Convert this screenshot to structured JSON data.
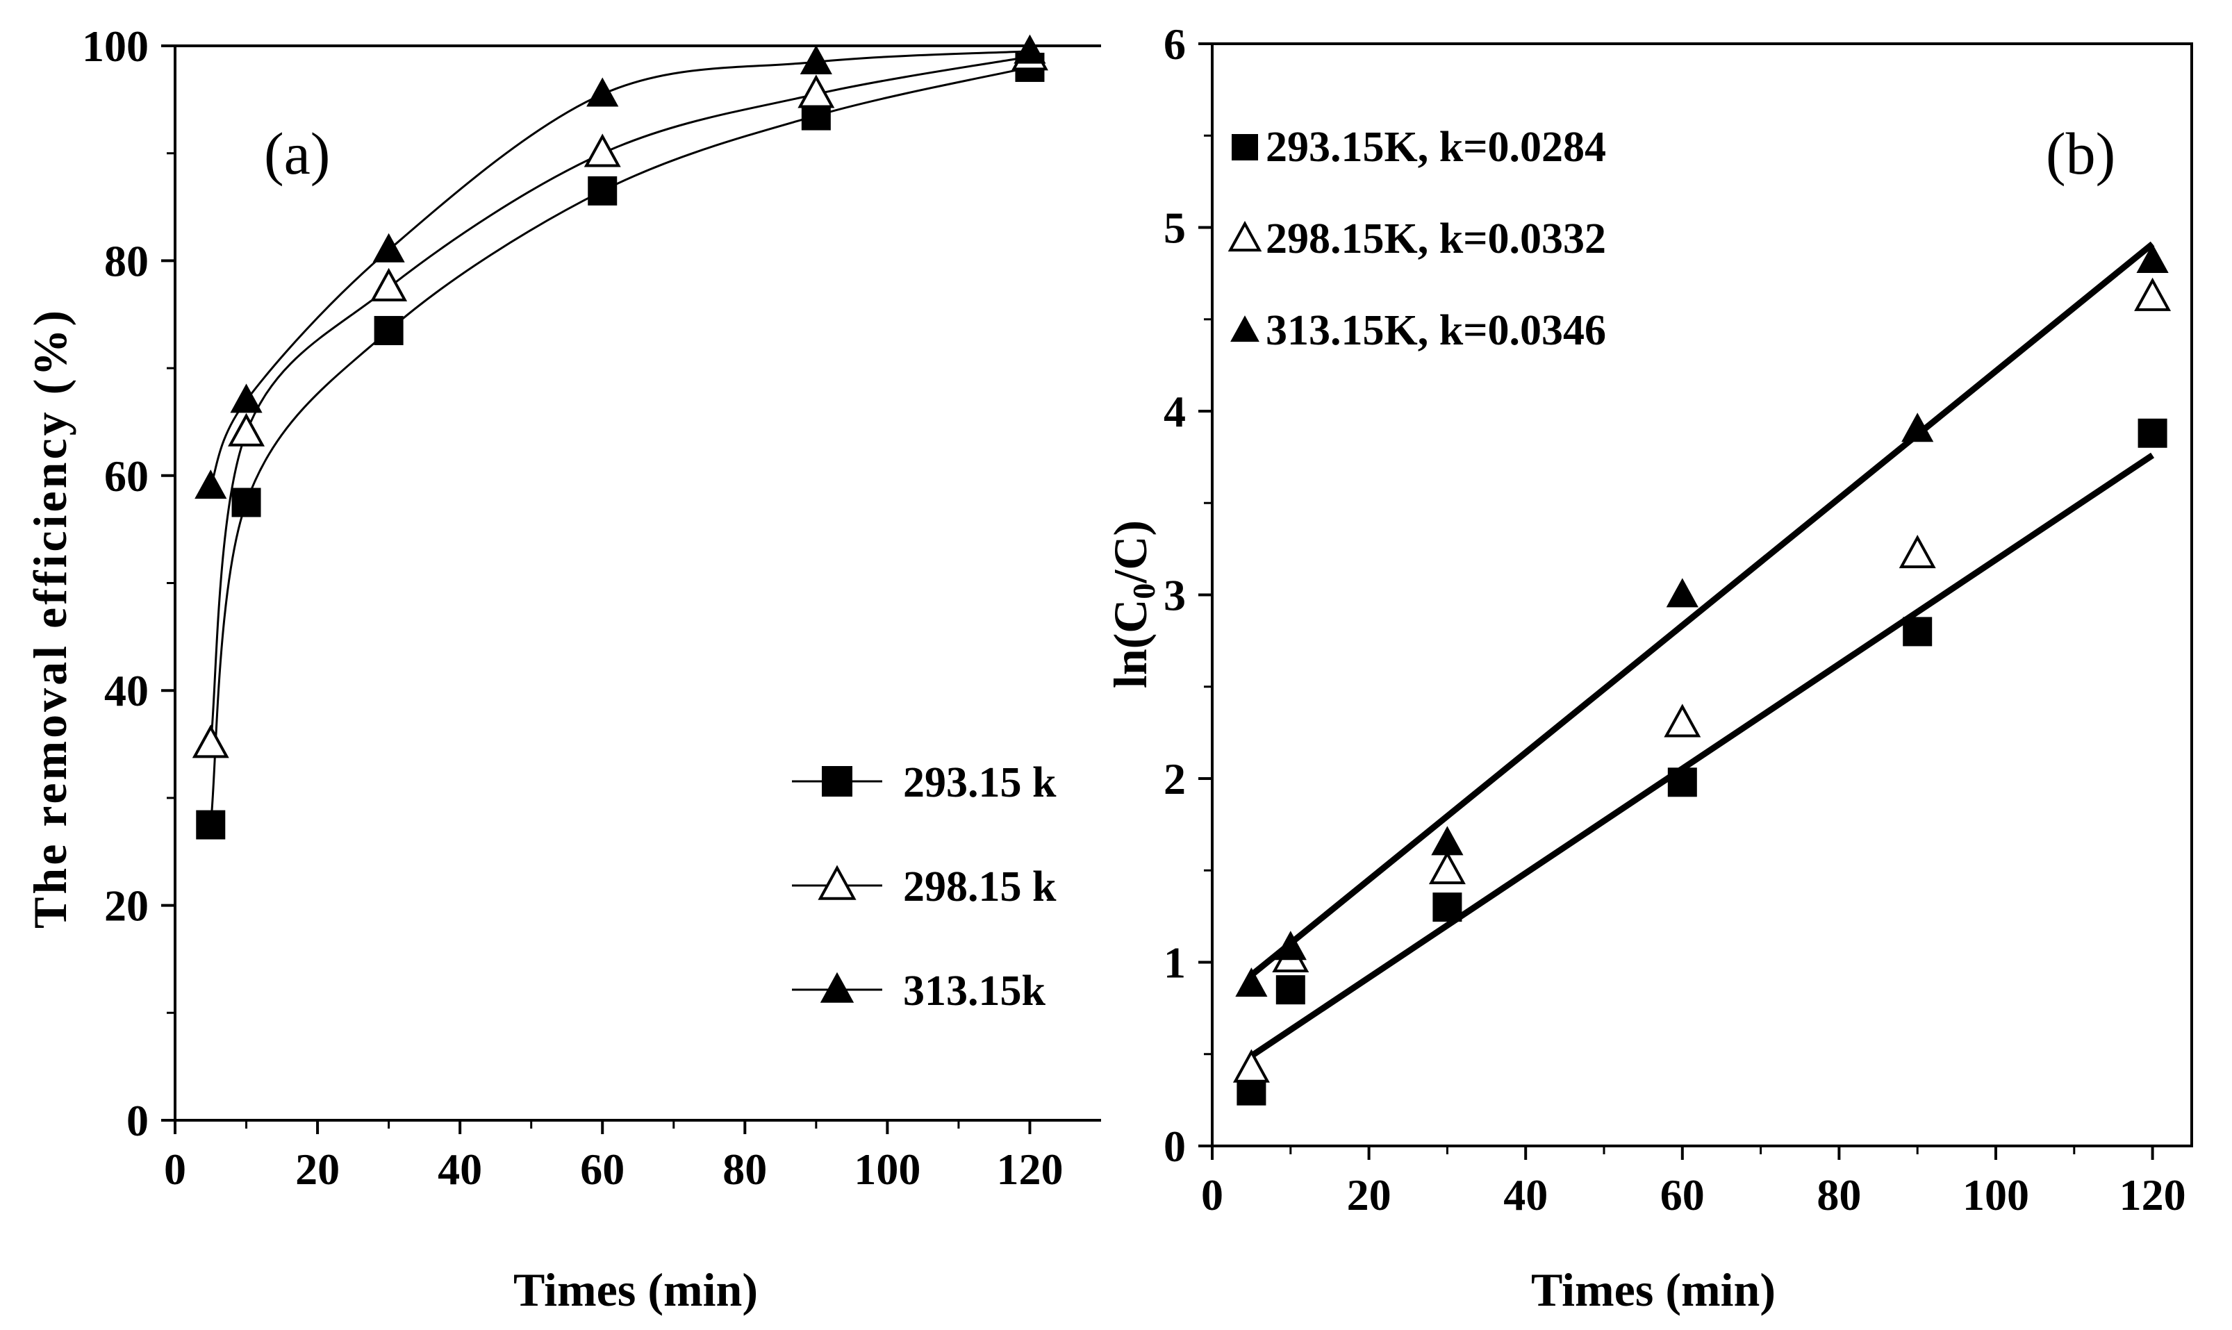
{
  "chart_data": [
    {
      "panel": "(a)",
      "type": "line",
      "xlabel": "Times (min)",
      "ylabel": "The removal efficiency (%)",
      "xlim": [
        0,
        130
      ],
      "ylim": [
        0,
        100
      ],
      "xticks": [
        0,
        20,
        40,
        60,
        80,
        100,
        120
      ],
      "yticks": [
        0,
        20,
        40,
        60,
        80,
        100
      ],
      "legend_position": "bottom-right",
      "x": [
        5,
        10,
        30,
        60,
        90,
        120
      ],
      "series": [
        {
          "name": "293.15 k",
          "marker": "square-filled",
          "values": [
            27.5,
            57.5,
            73.5,
            86.5,
            93.5,
            98.0
          ]
        },
        {
          "name": "298.15 k",
          "marker": "triangle-open",
          "values": [
            35.0,
            64.0,
            77.5,
            90.0,
            95.5,
            99.0
          ]
        },
        {
          "name": "313.15k",
          "marker": "triangle-filled",
          "values": [
            59.0,
            67.0,
            81.0,
            95.5,
            98.5,
            99.5
          ]
        }
      ]
    },
    {
      "panel": "(b)",
      "type": "scatter",
      "xlabel": "Times (min)",
      "ylabel": "ln(C0/C)",
      "ylabel_main": "ln(C",
      "ylabel_sub": "0",
      "ylabel_end": "/C)",
      "xlim": [
        0,
        125
      ],
      "ylim": [
        0,
        6
      ],
      "xticks": [
        0,
        20,
        40,
        60,
        80,
        100,
        120
      ],
      "yticks": [
        0,
        1,
        2,
        3,
        4,
        5,
        6
      ],
      "legend_position": "top-left",
      "x": [
        5,
        10,
        30,
        60,
        90,
        120
      ],
      "series": [
        {
          "name": "293.15K, k=0.0284",
          "marker": "square-filled",
          "values": [
            0.3,
            0.85,
            1.3,
            1.98,
            2.8,
            3.88
          ]
        },
        {
          "name": "298.15K, k=0.0332",
          "marker": "triangle-open",
          "values": [
            0.42,
            1.02,
            1.5,
            2.3,
            3.22,
            4.62
          ]
        },
        {
          "name": "313.15K, k=0.0346",
          "marker": "triangle-filled",
          "values": [
            0.88,
            1.08,
            1.65,
            3.0,
            3.9,
            4.82
          ]
        }
      ],
      "fit_lines": [
        {
          "name": "fit-293.15K",
          "x": [
            5,
            120
          ],
          "y": [
            0.49,
            3.76
          ]
        },
        {
          "name": "fit-313.15K",
          "x": [
            5,
            120
          ],
          "y": [
            0.93,
            4.91
          ]
        }
      ]
    }
  ]
}
